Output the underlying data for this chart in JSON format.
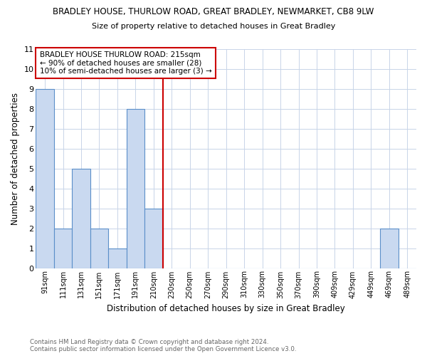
{
  "title_line1": "BRADLEY HOUSE, THURLOW ROAD, GREAT BRADLEY, NEWMARKET, CB8 9LW",
  "title_line2": "Size of property relative to detached houses in Great Bradley",
  "xlabel": "Distribution of detached houses by size in Great Bradley",
  "ylabel": "Number of detached properties",
  "footnote": "Contains HM Land Registry data © Crown copyright and database right 2024.\nContains public sector information licensed under the Open Government Licence v3.0.",
  "categories": [
    "91sqm",
    "111sqm",
    "131sqm",
    "151sqm",
    "171sqm",
    "191sqm",
    "210sqm",
    "230sqm",
    "250sqm",
    "270sqm",
    "290sqm",
    "310sqm",
    "330sqm",
    "350sqm",
    "370sqm",
    "390sqm",
    "409sqm",
    "429sqm",
    "449sqm",
    "469sqm",
    "489sqm"
  ],
  "values": [
    9,
    2,
    5,
    2,
    1,
    8,
    3,
    0,
    0,
    0,
    0,
    0,
    0,
    0,
    0,
    0,
    0,
    0,
    0,
    2,
    0
  ],
  "bar_color": "#c9d9f0",
  "bar_edge_color": "#5b8fc9",
  "property_label": "BRADLEY HOUSE THURLOW ROAD: 215sqm",
  "annotation_line1": "← 90% of detached houses are smaller (28)",
  "annotation_line2": "10% of semi-detached houses are larger (3) →",
  "vline_color": "#cc0000",
  "ylim": [
    0,
    11
  ],
  "yticks": [
    0,
    1,
    2,
    3,
    4,
    5,
    6,
    7,
    8,
    9,
    10,
    11
  ],
  "annotation_box_color": "#ffffff",
  "annotation_box_edge": "#cc0000",
  "bg_color": "#ffffff",
  "grid_color": "#c8d4e8"
}
